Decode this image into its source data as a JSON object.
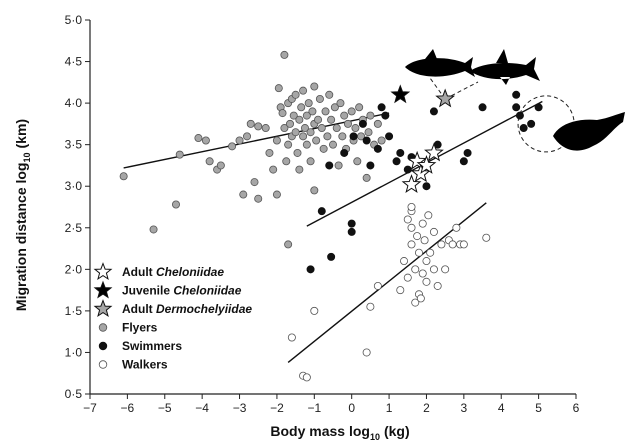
{
  "chart_data": {
    "type": "scatter",
    "xlabel": "Body mass log",
    "xlabel_sub": "10",
    "xlabel_unit": "(kg)",
    "ylabel": "Migration distance log",
    "ylabel_sub": "10",
    "ylabel_unit": "(km)",
    "xlim": [
      -7,
      6
    ],
    "ylim": [
      0.5,
      5.0
    ],
    "xticks": [
      -7,
      -6,
      -5,
      -4,
      -3,
      -2,
      -1,
      0,
      1,
      2,
      3,
      4,
      5,
      6
    ],
    "xtick_labels": [
      "−7",
      "−6",
      "−5",
      "−4",
      "−3",
      "−2",
      "−1",
      "0",
      "1",
      "2",
      "3",
      "4",
      "5",
      "6"
    ],
    "yticks": [
      0.5,
      1.0,
      1.5,
      2.0,
      2.5,
      3.0,
      3.5,
      4.0,
      4.5,
      5.0
    ],
    "ytick_labels": [
      "0·5",
      "1·0",
      "1·5",
      "2·0",
      "2·5",
      "3·0",
      "3·5",
      "4·0",
      "4·5",
      "5·0"
    ],
    "legend_position": "bottom-left",
    "grid": false,
    "legend": [
      {
        "series": "adult_cheloniidae",
        "prefix": "Adult ",
        "italic": "Cheloniidae",
        "marker": "star-white"
      },
      {
        "series": "juvenile_cheloniidae",
        "prefix": "Juvenile ",
        "italic": "Cheloniidae",
        "marker": "star-black"
      },
      {
        "series": "adult_dermochelyiidae",
        "prefix": "Adult ",
        "italic": "Dermochelyiidae",
        "marker": "star-grey"
      },
      {
        "series": "flyers",
        "prefix": "Flyers",
        "italic": "",
        "marker": "circle-grey"
      },
      {
        "series": "swimmers",
        "prefix": "Swimmers",
        "italic": "",
        "marker": "circle-black"
      },
      {
        "series": "walkers",
        "prefix": "Walkers",
        "italic": "",
        "marker": "circle-white"
      }
    ],
    "series": {
      "flyers": {
        "color": "#a6a6a6",
        "points": [
          [
            -6.1,
            3.12
          ],
          [
            -5.3,
            2.48
          ],
          [
            -4.7,
            2.78
          ],
          [
            -4.6,
            3.38
          ],
          [
            -4.1,
            3.58
          ],
          [
            -3.9,
            3.55
          ],
          [
            -3.8,
            3.3
          ],
          [
            -3.6,
            3.2
          ],
          [
            -3.5,
            3.25
          ],
          [
            -3.2,
            3.48
          ],
          [
            -3.0,
            3.55
          ],
          [
            -2.9,
            2.9
          ],
          [
            -2.8,
            3.6
          ],
          [
            -2.7,
            3.75
          ],
          [
            -2.5,
            3.72
          ],
          [
            -2.3,
            3.7
          ],
          [
            -2.2,
            3.4
          ],
          [
            -2.1,
            3.2
          ],
          [
            -2.0,
            3.55
          ],
          [
            -1.95,
            4.18
          ],
          [
            -1.9,
            3.95
          ],
          [
            -1.85,
            3.88
          ],
          [
            -1.8,
            3.7
          ],
          [
            -1.8,
            4.58
          ],
          [
            -1.75,
            3.3
          ],
          [
            -1.7,
            4.0
          ],
          [
            -1.7,
            3.5
          ],
          [
            -1.65,
            3.75
          ],
          [
            -1.6,
            3.6
          ],
          [
            -1.6,
            4.05
          ],
          [
            -1.55,
            3.85
          ],
          [
            -1.5,
            3.65
          ],
          [
            -1.5,
            4.1
          ],
          [
            -1.45,
            3.4
          ],
          [
            -1.4,
            3.8
          ],
          [
            -1.4,
            3.2
          ],
          [
            -1.35,
            3.95
          ],
          [
            -1.3,
            3.6
          ],
          [
            -1.3,
            4.15
          ],
          [
            -1.25,
            3.7
          ],
          [
            -1.2,
            3.85
          ],
          [
            -1.2,
            3.5
          ],
          [
            -1.15,
            4.0
          ],
          [
            -1.1,
            3.65
          ],
          [
            -1.1,
            3.3
          ],
          [
            -1.05,
            3.9
          ],
          [
            -1.0,
            3.75
          ],
          [
            -1.0,
            4.2
          ],
          [
            -0.95,
            3.55
          ],
          [
            -0.9,
            3.8
          ],
          [
            -0.85,
            4.05
          ],
          [
            -0.8,
            3.7
          ],
          [
            -0.75,
            3.45
          ],
          [
            -0.7,
            3.9
          ],
          [
            -0.65,
            3.6
          ],
          [
            -0.6,
            4.1
          ],
          [
            -0.55,
            3.8
          ],
          [
            -0.5,
            3.5
          ],
          [
            -0.45,
            3.95
          ],
          [
            -0.4,
            3.7
          ],
          [
            -0.35,
            3.25
          ],
          [
            -0.3,
            4.0
          ],
          [
            -0.25,
            3.6
          ],
          [
            -0.2,
            3.85
          ],
          [
            -0.15,
            3.45
          ],
          [
            -0.1,
            3.75
          ],
          [
            0.0,
            3.9
          ],
          [
            0.05,
            3.55
          ],
          [
            0.1,
            3.7
          ],
          [
            0.15,
            3.3
          ],
          [
            0.2,
            3.95
          ],
          [
            0.25,
            3.6
          ],
          [
            0.3,
            3.8
          ],
          [
            0.4,
            3.1
          ],
          [
            0.45,
            3.65
          ],
          [
            0.5,
            3.85
          ],
          [
            0.6,
            3.5
          ],
          [
            0.7,
            3.75
          ],
          [
            0.8,
            3.55
          ],
          [
            -2.5,
            2.85
          ],
          [
            -1.7,
            2.3
          ],
          [
            -1.0,
            2.95
          ],
          [
            -2.0,
            2.9
          ],
          [
            -2.6,
            3.05
          ]
        ]
      },
      "swimmers": {
        "color": "#111111",
        "points": [
          [
            -1.1,
            2.0
          ],
          [
            -0.8,
            2.7
          ],
          [
            -0.55,
            2.15
          ],
          [
            -0.6,
            3.25
          ],
          [
            -0.2,
            3.4
          ],
          [
            0.0,
            2.55
          ],
          [
            0.0,
            2.45
          ],
          [
            0.05,
            3.6
          ],
          [
            0.3,
            3.75
          ],
          [
            0.4,
            3.55
          ],
          [
            0.5,
            3.25
          ],
          [
            0.7,
            3.45
          ],
          [
            0.8,
            3.95
          ],
          [
            0.9,
            3.85
          ],
          [
            1.0,
            3.6
          ],
          [
            1.2,
            3.3
          ],
          [
            1.3,
            3.4
          ],
          [
            1.5,
            3.2
          ],
          [
            1.6,
            3.35
          ],
          [
            2.0,
            3.0
          ],
          [
            2.3,
            3.5
          ],
          [
            2.2,
            3.9
          ],
          [
            3.0,
            3.3
          ],
          [
            3.1,
            3.4
          ],
          [
            3.5,
            3.95
          ],
          [
            4.4,
            4.1
          ],
          [
            4.4,
            3.95
          ],
          [
            4.5,
            3.85
          ],
          [
            4.6,
            3.7
          ],
          [
            4.8,
            3.75
          ],
          [
            5.0,
            3.95
          ]
        ]
      },
      "walkers": {
        "color": "#ffffff",
        "points": [
          [
            -1.6,
            1.18
          ],
          [
            -1.3,
            0.72
          ],
          [
            -1.2,
            0.7
          ],
          [
            -1.0,
            1.5
          ],
          [
            0.4,
            1.0
          ],
          [
            0.5,
            1.55
          ],
          [
            0.7,
            1.8
          ],
          [
            1.3,
            1.75
          ],
          [
            1.4,
            2.1
          ],
          [
            1.5,
            1.9
          ],
          [
            1.6,
            2.3
          ],
          [
            1.6,
            2.5
          ],
          [
            1.6,
            2.7
          ],
          [
            1.7,
            1.6
          ],
          [
            1.7,
            2.0
          ],
          [
            1.75,
            2.4
          ],
          [
            1.8,
            1.7
          ],
          [
            1.8,
            2.2
          ],
          [
            1.85,
            1.65
          ],
          [
            1.9,
            2.55
          ],
          [
            1.9,
            1.95
          ],
          [
            1.95,
            2.35
          ],
          [
            2.0,
            2.1
          ],
          [
            2.0,
            1.85
          ],
          [
            2.05,
            2.65
          ],
          [
            2.1,
            2.2
          ],
          [
            2.2,
            2.0
          ],
          [
            2.2,
            2.45
          ],
          [
            2.3,
            1.8
          ],
          [
            2.4,
            2.3
          ],
          [
            2.5,
            2.0
          ],
          [
            2.6,
            2.35
          ],
          [
            2.7,
            2.3
          ],
          [
            2.8,
            2.5
          ],
          [
            2.9,
            2.3
          ],
          [
            3.0,
            2.3
          ],
          [
            3.6,
            2.38
          ],
          [
            1.5,
            2.6
          ],
          [
            1.6,
            2.75
          ]
        ]
      },
      "adult_cheloniidae": {
        "color": "#ffffff",
        "points": [
          [
            1.6,
            3.02
          ],
          [
            1.75,
            3.3
          ],
          [
            1.85,
            3.15
          ],
          [
            2.0,
            3.25
          ],
          [
            2.2,
            3.4
          ]
        ]
      },
      "juvenile_cheloniidae": {
        "color": "#000000",
        "points": [
          [
            1.3,
            4.1
          ]
        ]
      },
      "adult_dermochelyiidae": {
        "color": "#a6a6a6",
        "points": [
          [
            2.5,
            4.05
          ]
        ]
      }
    },
    "regression_lines": [
      {
        "series": "flyers",
        "from": [
          -6.1,
          3.22
        ],
        "to": [
          1.0,
          3.88
        ]
      },
      {
        "series": "swimmers",
        "from": [
          -1.2,
          2.52
        ],
        "to": [
          5.1,
          4.02
        ]
      },
      {
        "series": "walkers",
        "from": [
          -1.7,
          0.88
        ],
        "to": [
          3.6,
          2.8
        ]
      }
    ],
    "dashed_circle": {
      "cx": 5.2,
      "cy": 3.75,
      "r_units_x": 0.75
    },
    "silhouettes": [
      "tuna-icon",
      "shark-icon",
      "whale-icon"
    ]
  }
}
